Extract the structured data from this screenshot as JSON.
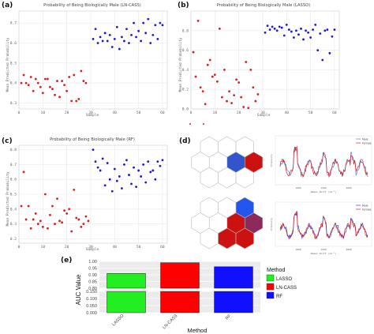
{
  "panel_labels": {
    "a": "(a)",
    "b": "(b)",
    "c": "(c)",
    "d": "(d)",
    "e": "(e)"
  },
  "colors": {
    "male": "#1a1acc",
    "female": "#d62020",
    "lasso": "#22ee22",
    "lncass": "#ff0000",
    "rf": "#1010ff"
  },
  "chart_data": [
    {
      "id": "a",
      "type": "scatter",
      "title": "Probability of Being Biologically Male (LN-CASS)",
      "xlabel": "Sample",
      "ylabel": "Mean Predicted Probability",
      "xlim": [
        0,
        62
      ],
      "ylim": [
        0.27,
        0.76
      ],
      "xticks": [
        0,
        10,
        20,
        30,
        40,
        50,
        60
      ],
      "yticks": [
        0.3,
        0.4,
        0.5,
        0.6,
        0.7
      ],
      "series": [
        {
          "color_key": "female",
          "x": [
            1,
            2,
            3,
            4,
            5,
            6,
            7,
            8,
            9,
            10,
            11,
            12,
            13,
            14,
            15,
            16,
            17,
            18,
            19,
            20,
            21,
            22,
            23,
            24,
            25,
            26,
            27,
            28
          ],
          "y": [
            0.4,
            0.44,
            0.4,
            0.39,
            0.43,
            0.36,
            0.42,
            0.4,
            0.38,
            0.35,
            0.42,
            0.42,
            0.38,
            0.37,
            0.34,
            0.41,
            0.33,
            0.41,
            0.39,
            0.36,
            0.43,
            0.31,
            0.44,
            0.31,
            0.32,
            0.46,
            0.41,
            0.4
          ]
        },
        {
          "color_key": "male",
          "x": [
            31,
            32,
            33,
            34,
            35,
            36,
            37,
            38,
            39,
            40,
            41,
            42,
            43,
            44,
            45,
            46,
            47,
            48,
            49,
            50,
            51,
            52,
            53,
            54,
            55,
            56,
            57,
            58,
            59,
            60
          ],
          "y": [
            0.62,
            0.67,
            0.6,
            0.63,
            0.61,
            0.65,
            0.61,
            0.64,
            0.58,
            0.62,
            0.68,
            0.57,
            0.63,
            0.61,
            0.67,
            0.6,
            0.64,
            0.7,
            0.63,
            0.66,
            0.61,
            0.7,
            0.65,
            0.72,
            0.6,
            0.64,
            0.69,
            0.62,
            0.7,
            0.69
          ]
        }
      ]
    },
    {
      "id": "b",
      "type": "scatter",
      "title": "Probability of Being Biologically Male (LASSO)",
      "xlabel": "Sample",
      "ylabel": "Mean Predicted Probability",
      "xlim": [
        0,
        62
      ],
      "ylim": [
        0.0,
        1.0
      ],
      "xticks": [
        0,
        10,
        20,
        30,
        40,
        50,
        60
      ],
      "yticks": [
        0.0,
        0.2,
        0.4,
        0.6,
        0.8
      ],
      "series": [
        {
          "color_key": "female",
          "x": [
            1,
            2,
            3,
            4,
            5,
            6,
            7,
            8,
            9,
            10,
            11,
            12,
            13,
            14,
            15,
            16,
            17,
            18,
            19,
            20,
            21,
            22,
            23,
            24,
            25,
            26,
            27,
            28
          ],
          "y": [
            0.58,
            0.33,
            0.9,
            0.22,
            0.18,
            0.05,
            0.45,
            0.5,
            0.33,
            0.35,
            0.28,
            0.82,
            0.12,
            0.4,
            0.08,
            0.18,
            0.06,
            0.14,
            0.3,
            0.27,
            0.12,
            0.02,
            0.48,
            0.01,
            0.4,
            0.22,
            0.08,
            0.15
          ]
        },
        {
          "color_key": "male",
          "x": [
            31,
            32,
            33,
            34,
            35,
            36,
            37,
            38,
            39,
            40,
            41,
            42,
            43,
            44,
            45,
            46,
            47,
            48,
            49,
            50,
            51,
            52,
            53,
            54,
            55,
            56,
            57,
            58,
            59,
            60
          ],
          "y": [
            0.78,
            0.85,
            0.81,
            0.84,
            0.82,
            0.8,
            0.84,
            0.83,
            0.75,
            0.86,
            0.81,
            0.79,
            0.73,
            0.8,
            0.76,
            0.82,
            0.71,
            0.8,
            0.78,
            0.73,
            0.81,
            0.86,
            0.6,
            0.77,
            0.5,
            0.8,
            0.81,
            0.57,
            0.74,
            0.81
          ]
        }
      ]
    },
    {
      "id": "c",
      "type": "scatter",
      "title": "Probability of Being Biologically Male (RF)",
      "xlabel": "Sample",
      "ylabel": "Mean Predicted Probability",
      "xlim": [
        0,
        62
      ],
      "ylim": [
        0.17,
        0.83
      ],
      "xticks": [
        0,
        10,
        20,
        30,
        40,
        50,
        60
      ],
      "yticks": [
        0.2,
        0.3,
        0.4,
        0.5,
        0.6,
        0.7,
        0.8
      ],
      "series": [
        {
          "color_key": "female",
          "x": [
            1,
            2,
            3,
            4,
            5,
            6,
            7,
            8,
            9,
            10,
            11,
            12,
            13,
            14,
            15,
            16,
            17,
            18,
            19,
            20,
            21,
            22,
            23,
            24,
            25,
            26,
            27,
            28,
            29
          ],
          "y": [
            0.42,
            0.65,
            0.33,
            0.42,
            0.27,
            0.33,
            0.37,
            0.3,
            0.32,
            0.28,
            0.5,
            0.27,
            0.36,
            0.42,
            0.3,
            0.47,
            0.32,
            0.31,
            0.39,
            0.37,
            0.4,
            0.25,
            0.53,
            0.34,
            0.33,
            0.28,
            0.3,
            0.35,
            0.32
          ]
        },
        {
          "color_key": "male",
          "x": [
            31,
            32,
            33,
            34,
            35,
            36,
            37,
            38,
            39,
            40,
            41,
            42,
            43,
            44,
            45,
            46,
            47,
            48,
            49,
            50,
            51,
            52,
            53,
            54,
            55,
            56,
            57,
            58,
            59,
            60
          ],
          "y": [
            0.8,
            0.72,
            0.68,
            0.66,
            0.74,
            0.56,
            0.71,
            0.6,
            0.52,
            0.67,
            0.59,
            0.62,
            0.54,
            0.7,
            0.73,
            0.63,
            0.57,
            0.68,
            0.55,
            0.66,
            0.62,
            0.7,
            0.58,
            0.72,
            0.65,
            0.66,
            0.6,
            0.72,
            0.69,
            0.73
          ]
        }
      ]
    },
    {
      "id": "e",
      "type": "bar",
      "xlabel": "Method",
      "ylabel": "AUC Value",
      "categories": [
        "LASSO",
        "LN-CASS",
        "RF"
      ],
      "values": [
        0.91,
        0.99,
        0.96
      ],
      "yticks": [
        "0.000",
        "0.050",
        "0.100",
        "0.150",
        "0.80",
        "0.85",
        "0.90",
        "0.95",
        "1.00"
      ],
      "legend": {
        "title": "Method",
        "entries": [
          "LASSO",
          "LN-CASS",
          "RF"
        ],
        "placement": "right"
      }
    }
  ],
  "panel_d": {
    "spectra_legend": [
      "Male",
      "Female"
    ],
    "xlabel": "Raman Shift (cm⁻¹)",
    "ylabel": "Intensity",
    "xticks": [
      "1000",
      "1500",
      "2000"
    ]
  }
}
